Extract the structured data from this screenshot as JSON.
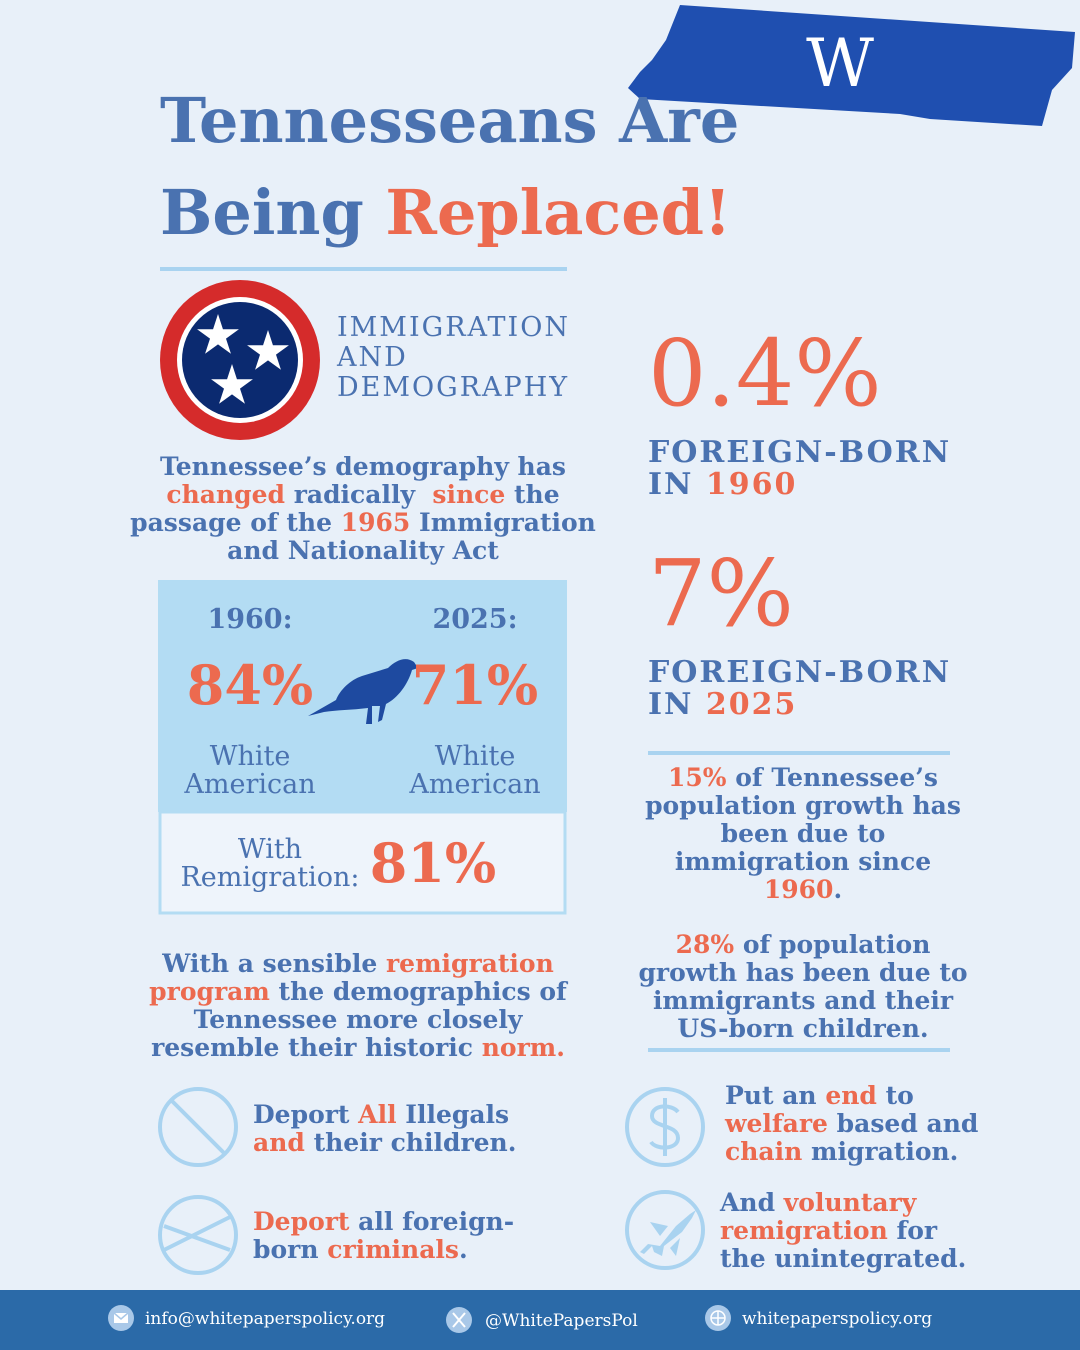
{
  "palette": {
    "blue": "#4a72b0",
    "accent": "#ec6a4f"
  },
  "header": {
    "title": [
      [
        {
          "text": "Tennesseans Are",
          "color": "#4a72b0"
        }
      ],
      [
        {
          "text": "Being ",
          "color": "#4a72b0"
        },
        {
          "text": "Replaced!",
          "color": "#ec6a4f"
        }
      ]
    ],
    "logo": "W"
  },
  "emblem_label": [
    "IMMIGRATION",
    "AND",
    "DEMOGRAPHY"
  ],
  "intro": [
    [
      {
        "text": "Tennessee’s demography has",
        "color": "#4a72b0"
      }
    ],
    [
      {
        "text": "changed",
        "color": "#ec6a4f"
      },
      {
        "text": " radically  ",
        "color": "#4a72b0"
      },
      {
        "text": "since",
        "color": "#ec6a4f"
      },
      {
        "text": " the",
        "color": "#4a72b0"
      }
    ],
    [
      {
        "text": "passage of the ",
        "color": "#4a72b0"
      },
      {
        "text": "1965",
        "color": "#ec6a4f"
      },
      {
        "text": " Immigration",
        "color": "#4a72b0"
      }
    ],
    [
      {
        "text": "and Nationality Act",
        "color": "#4a72b0"
      }
    ]
  ],
  "comparison": {
    "before": {
      "year": "1960:",
      "share": "84%",
      "label": [
        "White",
        "American"
      ]
    },
    "after": {
      "year": "2025:",
      "share": "71%",
      "label": [
        "White",
        "American"
      ]
    },
    "remigration": {
      "label": [
        "With",
        "Remigration:"
      ],
      "share": "81%"
    }
  },
  "stats": [
    {
      "value": "0.4%",
      "label": [
        [
          {
            "text": "FOREIGN-BORN",
            "color": "#4a72b0"
          }
        ],
        [
          {
            "text": "IN ",
            "color": "#4a72b0"
          },
          {
            "text": "1960",
            "color": "#ec6a4f"
          }
        ]
      ]
    },
    {
      "value": "7%",
      "label": [
        [
          {
            "text": "FOREIGN-BORN",
            "color": "#4a72b0"
          }
        ],
        [
          {
            "text": "IN ",
            "color": "#4a72b0"
          },
          {
            "text": "2025",
            "color": "#ec6a4f"
          }
        ]
      ]
    }
  ],
  "growth_notes": [
    [
      [
        {
          "text": "15%",
          "color": "#ec6a4f"
        },
        {
          "text": " of Tennessee’s",
          "color": "#4a72b0"
        }
      ],
      [
        {
          "text": "population growth has",
          "color": "#4a72b0"
        }
      ],
      [
        {
          "text": "been due to",
          "color": "#4a72b0"
        }
      ],
      [
        {
          "text": "immigration since",
          "color": "#4a72b0"
        }
      ],
      [
        {
          "text": "1960",
          "color": "#ec6a4f"
        },
        {
          "text": ".",
          "color": "#4a72b0"
        }
      ]
    ],
    [
      [
        {
          "text": "28%",
          "color": "#ec6a4f"
        },
        {
          "text": " of population",
          "color": "#4a72b0"
        }
      ],
      [
        {
          "text": "growth has been due to",
          "color": "#4a72b0"
        }
      ],
      [
        {
          "text": "immigrants and their",
          "color": "#4a72b0"
        }
      ],
      [
        {
          "text": "US-born children.",
          "color": "#4a72b0"
        }
      ]
    ]
  ],
  "conclusion": [
    [
      {
        "text": "With a sensible ",
        "color": "#4a72b0"
      },
      {
        "text": "remigration",
        "color": "#ec6a4f"
      }
    ],
    [
      {
        "text": "program",
        "color": "#ec6a4f"
      },
      {
        "text": " the demographics of",
        "color": "#4a72b0"
      }
    ],
    [
      {
        "text": "Tennessee more closely",
        "color": "#4a72b0"
      }
    ],
    [
      {
        "text": "resemble their historic ",
        "color": "#4a72b0"
      },
      {
        "text": "norm.",
        "color": "#ec6a4f"
      }
    ]
  ],
  "policies": [
    [
      [
        {
          "text": "Deport ",
          "color": "#4a72b0"
        },
        {
          "text": "All",
          "color": "#ec6a4f"
        },
        {
          "text": " Illegals",
          "color": "#4a72b0"
        }
      ],
      [
        {
          "text": "and",
          "color": "#ec6a4f"
        },
        {
          "text": " their children.",
          "color": "#4a72b0"
        }
      ]
    ],
    [
      [
        {
          "text": "Deport",
          "color": "#ec6a4f"
        },
        {
          "text": " all foreign-",
          "color": "#4a72b0"
        }
      ],
      [
        {
          "text": "born ",
          "color": "#4a72b0"
        },
        {
          "text": "criminals",
          "color": "#ec6a4f"
        },
        {
          "text": ".",
          "color": "#4a72b0"
        }
      ]
    ],
    [
      [
        {
          "text": "Put an ",
          "color": "#4a72b0"
        },
        {
          "text": "end",
          "color": "#ec6a4f"
        },
        {
          "text": " to",
          "color": "#4a72b0"
        }
      ],
      [
        {
          "text": "welfare",
          "color": "#ec6a4f"
        },
        {
          "text": " based and",
          "color": "#4a72b0"
        }
      ],
      [
        {
          "text": "chain",
          "color": "#ec6a4f"
        },
        {
          "text": " migration.",
          "color": "#4a72b0"
        }
      ]
    ],
    [
      [
        {
          "text": "And ",
          "color": "#4a72b0"
        },
        {
          "text": "voluntary",
          "color": "#ec6a4f"
        }
      ],
      [
        {
          "text": "remigration",
          "color": "#ec6a4f"
        },
        {
          "text": " for",
          "color": "#4a72b0"
        }
      ],
      [
        {
          "text": "the unintegrated.",
          "color": "#4a72b0"
        }
      ]
    ]
  ],
  "footer": {
    "email": "info@whitepaperspolicy.org",
    "handle": "@WhitePapersPol",
    "website": "whitepaperspolicy.org"
  }
}
